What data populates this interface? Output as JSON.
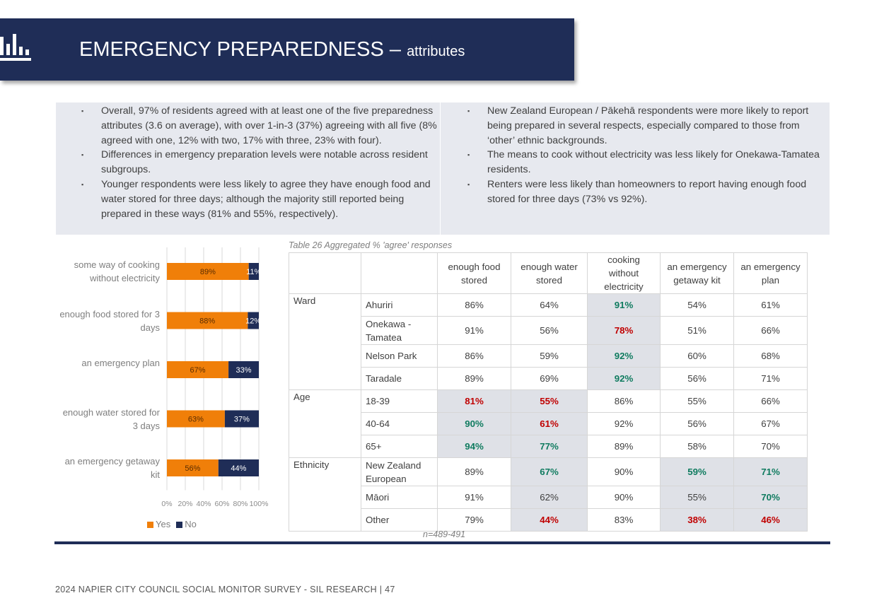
{
  "header": {
    "title": "EMERGENCY PREPAREDNESS –",
    "subtitle": "attributes"
  },
  "summary": {
    "left": [
      "Overall, 97% of residents agreed with at least one of the five preparedness attributes (3.6 on average), with over 1-in-3 (37%) agreeing with all five (8% agreed with one, 12% with two, 17% with three, 23% with four).",
      "Differences in emergency preparation levels were notable across resident subgroups.",
      "Younger respondents were less likely to agree they have enough food and water stored for three days; although the majority still reported being prepared in these ways (81% and 55%, respectively)."
    ],
    "right": [
      "New Zealand European / Pākehā respondents were more likely to report being prepared in several respects, especially compared to those from ‘other’ ethnic backgrounds.",
      "The means to cook without electricity was less likely for Onekawa-Tamatea residents.",
      "Renters were less likely than homeowners to report having enough food stored for three days (73% vs 92%)."
    ]
  },
  "chart_data": {
    "type": "bar",
    "orientation": "horizontal",
    "stacked": true,
    "categories": [
      "some way of cooking without electricity",
      "enough food stored for 3 days",
      "an emergency plan",
      "enough water stored for 3 days",
      "an emergency getaway kit"
    ],
    "series": [
      {
        "name": "Yes",
        "color": "#f07f09",
        "values": [
          89,
          88,
          67,
          63,
          56
        ]
      },
      {
        "name": "No",
        "color": "#1f2d57",
        "values": [
          11,
          12,
          33,
          37,
          44
        ]
      }
    ],
    "xticks": [
      "0%",
      "20%",
      "40%",
      "60%",
      "80%",
      "100%"
    ],
    "xlim": [
      0,
      100
    ],
    "value_suffix": "%",
    "legend": "bottom",
    "grid": true
  },
  "table": {
    "caption": "Table 26 Aggregated % 'agree' responses",
    "columns": [
      "enough food stored",
      "enough water stored",
      "cooking without electricity",
      "an emergency getaway kit",
      "an emergency plan"
    ],
    "groups": [
      {
        "name": "Ward",
        "rows": [
          {
            "label": "Ahuriri",
            "values": [
              "86%",
              "64%",
              "91%",
              "54%",
              "61%"
            ]
          },
          {
            "label": "Onekawa - Tamatea",
            "values": [
              "91%",
              "56%",
              "78%",
              "51%",
              "66%"
            ]
          },
          {
            "label": "Nelson Park",
            "values": [
              "86%",
              "59%",
              "92%",
              "60%",
              "68%"
            ]
          },
          {
            "label": "Taradale",
            "values": [
              "89%",
              "69%",
              "92%",
              "56%",
              "71%"
            ]
          }
        ]
      },
      {
        "name": "Age",
        "rows": [
          {
            "label": "18-39",
            "values": [
              "81%",
              "55%",
              "86%",
              "55%",
              "66%"
            ]
          },
          {
            "label": "40-64",
            "values": [
              "90%",
              "61%",
              "92%",
              "56%",
              "67%"
            ]
          },
          {
            "label": "65+",
            "values": [
              "94%",
              "77%",
              "89%",
              "58%",
              "70%"
            ]
          }
        ]
      },
      {
        "name": "Ethnicity",
        "rows": [
          {
            "label": "New Zealand European",
            "values": [
              "89%",
              "67%",
              "90%",
              "59%",
              "71%"
            ]
          },
          {
            "label": "Māori",
            "values": [
              "91%",
              "62%",
              "90%",
              "55%",
              "70%"
            ]
          },
          {
            "label": "Other",
            "values": [
              "79%",
              "44%",
              "83%",
              "38%",
              "46%"
            ]
          }
        ]
      }
    ],
    "highlights": {
      "higher": [
        "0.0.2",
        "0.2.2",
        "0.3.2",
        "1.1.0",
        "1.2.0",
        "1.2.1",
        "2.0.1",
        "2.0.3",
        "2.0.4",
        "2.1.4"
      ],
      "lower": [
        "0.1.2",
        "1.0.0",
        "1.0.1",
        "1.1.1",
        "2.2.1",
        "2.2.3",
        "2.2.4"
      ]
    },
    "shaded_columns": {
      "0": [
        2
      ],
      "1": [
        0,
        1
      ],
      "2": [
        1,
        3,
        4
      ]
    },
    "colors": {
      "higher": "#0f7b5f",
      "lower": "#c00000",
      "shade": "#dfe1e7"
    },
    "note": "n=489-491"
  },
  "footer": {
    "text": "2024 NAPIER CITY COUNCIL SOCIAL MONITOR SURVEY - SIL RESEARCH | 47"
  }
}
